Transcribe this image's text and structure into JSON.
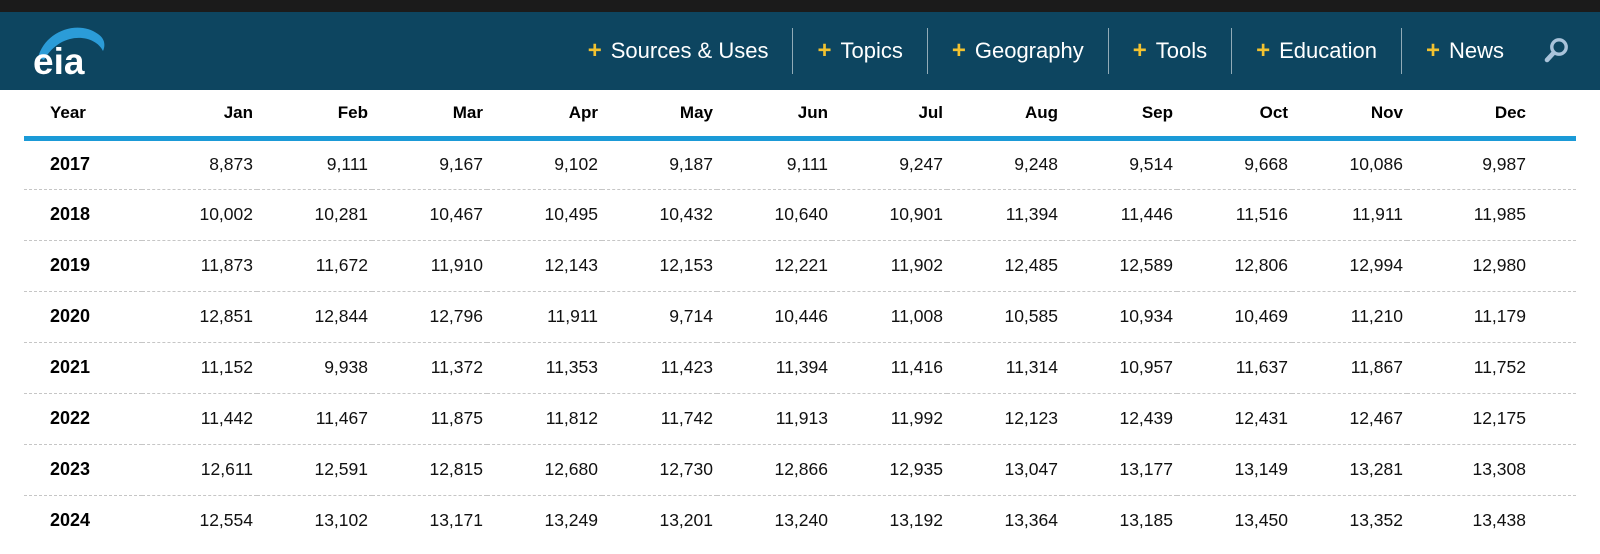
{
  "header": {
    "logo_text": "eia",
    "plus_glyph": "+",
    "nav_items": [
      {
        "label": "Sources & Uses"
      },
      {
        "label": "Topics"
      },
      {
        "label": "Geography"
      },
      {
        "label": "Tools"
      },
      {
        "label": "Education"
      },
      {
        "label": "News"
      }
    ],
    "search_icon": "magnifying-glass",
    "colors": {
      "top_strip": "#1b1b1b",
      "header_background": "#0d4560",
      "nav_plus_gold": "#f2c230",
      "logo_swoosh_blue": "#2b9cd8",
      "search_icon_blue": "#a9c3da"
    }
  },
  "table": {
    "columns": [
      "Year",
      "Jan",
      "Feb",
      "Mar",
      "Apr",
      "May",
      "Jun",
      "Jul",
      "Aug",
      "Sep",
      "Oct",
      "Nov",
      "Dec"
    ],
    "header_rule_color": "#1b9ad7",
    "rows": [
      {
        "year": "2017",
        "values": [
          "8,873",
          "9,111",
          "9,167",
          "9,102",
          "9,187",
          "9,111",
          "9,247",
          "9,248",
          "9,514",
          "9,668",
          "10,086",
          "9,987"
        ]
      },
      {
        "year": "2018",
        "values": [
          "10,002",
          "10,281",
          "10,467",
          "10,495",
          "10,432",
          "10,640",
          "10,901",
          "11,394",
          "11,446",
          "11,516",
          "11,911",
          "11,985"
        ]
      },
      {
        "year": "2019",
        "values": [
          "11,873",
          "11,672",
          "11,910",
          "12,143",
          "12,153",
          "12,221",
          "11,902",
          "12,485",
          "12,589",
          "12,806",
          "12,994",
          "12,980"
        ]
      },
      {
        "year": "2020",
        "values": [
          "12,851",
          "12,844",
          "12,796",
          "11,911",
          "9,714",
          "10,446",
          "11,008",
          "10,585",
          "10,934",
          "10,469",
          "11,210",
          "11,179"
        ]
      },
      {
        "year": "2021",
        "values": [
          "11,152",
          "9,938",
          "11,372",
          "11,353",
          "11,423",
          "11,394",
          "11,416",
          "11,314",
          "10,957",
          "11,637",
          "11,867",
          "11,752"
        ]
      },
      {
        "year": "2022",
        "values": [
          "11,442",
          "11,467",
          "11,875",
          "11,812",
          "11,742",
          "11,913",
          "11,992",
          "12,123",
          "12,439",
          "12,431",
          "12,467",
          "12,175"
        ]
      },
      {
        "year": "2023",
        "values": [
          "12,611",
          "12,591",
          "12,815",
          "12,680",
          "12,730",
          "12,866",
          "12,935",
          "13,047",
          "13,177",
          "13,149",
          "13,281",
          "13,308"
        ]
      },
      {
        "year": "2024",
        "values": [
          "12,554",
          "13,102",
          "13,171",
          "13,249",
          "13,201",
          "13,240",
          "13,192",
          "13,364",
          "13,185",
          "13,450",
          "13,352",
          "13,438"
        ]
      }
    ]
  }
}
